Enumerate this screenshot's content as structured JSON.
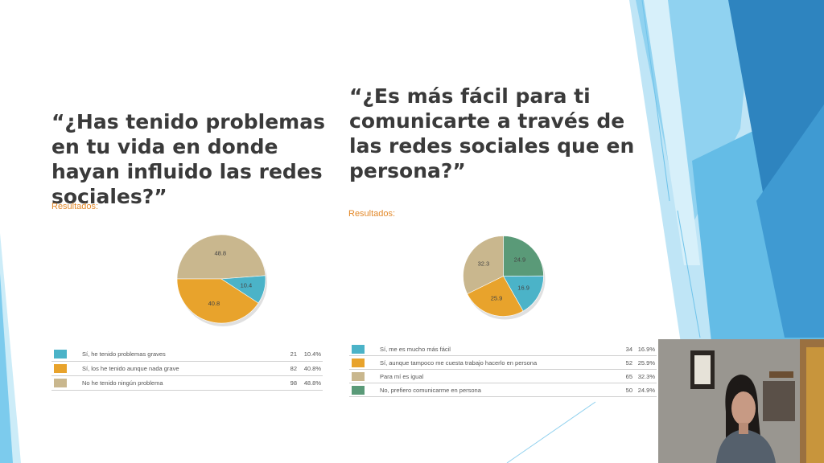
{
  "slide": {
    "left": {
      "question": "“¿Has tenido problemas en tu vida en donde hayan influido las redes sociales?”",
      "results_label": "Resultados:",
      "pie": [
        {
          "label": "48.8",
          "value": 48.8,
          "color": "#c9b78e"
        },
        {
          "label": "10.4",
          "value": 10.4,
          "color": "#4bb3c8"
        },
        {
          "label": "40.8",
          "value": 40.8,
          "color": "#e8a32c"
        }
      ],
      "rows": [
        {
          "label": "Sí, he tenido problemas graves",
          "count": "21",
          "percent": "10.4%",
          "color": "#4bb3c8"
        },
        {
          "label": "Sí, los he tenido aunque nada grave",
          "count": "82",
          "percent": "40.8%",
          "color": "#e8a32c"
        },
        {
          "label": "No he tenido ningún problema",
          "count": "98",
          "percent": "48.8%",
          "color": "#c9b78e"
        }
      ]
    },
    "right": {
      "question": "“¿Es más fácil para ti comunicarte a través de las redes sociales que en persona?”",
      "results_label": "Resultados:",
      "pie": [
        {
          "label": "24.9",
          "value": 24.9,
          "color": "#5a9a78"
        },
        {
          "label": "16.9",
          "value": 16.9,
          "color": "#4bb3c8"
        },
        {
          "label": "25.9",
          "value": 25.9,
          "color": "#e8a32c"
        },
        {
          "label": "32.3",
          "value": 32.3,
          "color": "#c9b78e"
        }
      ],
      "rows": [
        {
          "label": "Sí, me es mucho más fácil",
          "count": "34",
          "percent": "16.9%",
          "color": "#4bb3c8"
        },
        {
          "label": "Sí, aunque tampoco me cuesta trabajo hacerlo en persona",
          "count": "52",
          "percent": "25.9%",
          "color": "#e8a32c"
        },
        {
          "label": "Para mí es igual",
          "count": "65",
          "percent": "32.3%",
          "color": "#c9b78e"
        },
        {
          "label": "No, prefiero comunicarme en persona",
          "count": "50",
          "percent": "24.9%",
          "color": "#5a9a78"
        }
      ]
    }
  },
  "colors": {
    "title_text": "#3a3a3a",
    "results_label": "#e3892a",
    "deco_light": "#b4e0f4",
    "deco_mid": "#59b7e4",
    "deco_dark": "#2179b2"
  },
  "webcam": {
    "icon": "person-video-feed"
  }
}
